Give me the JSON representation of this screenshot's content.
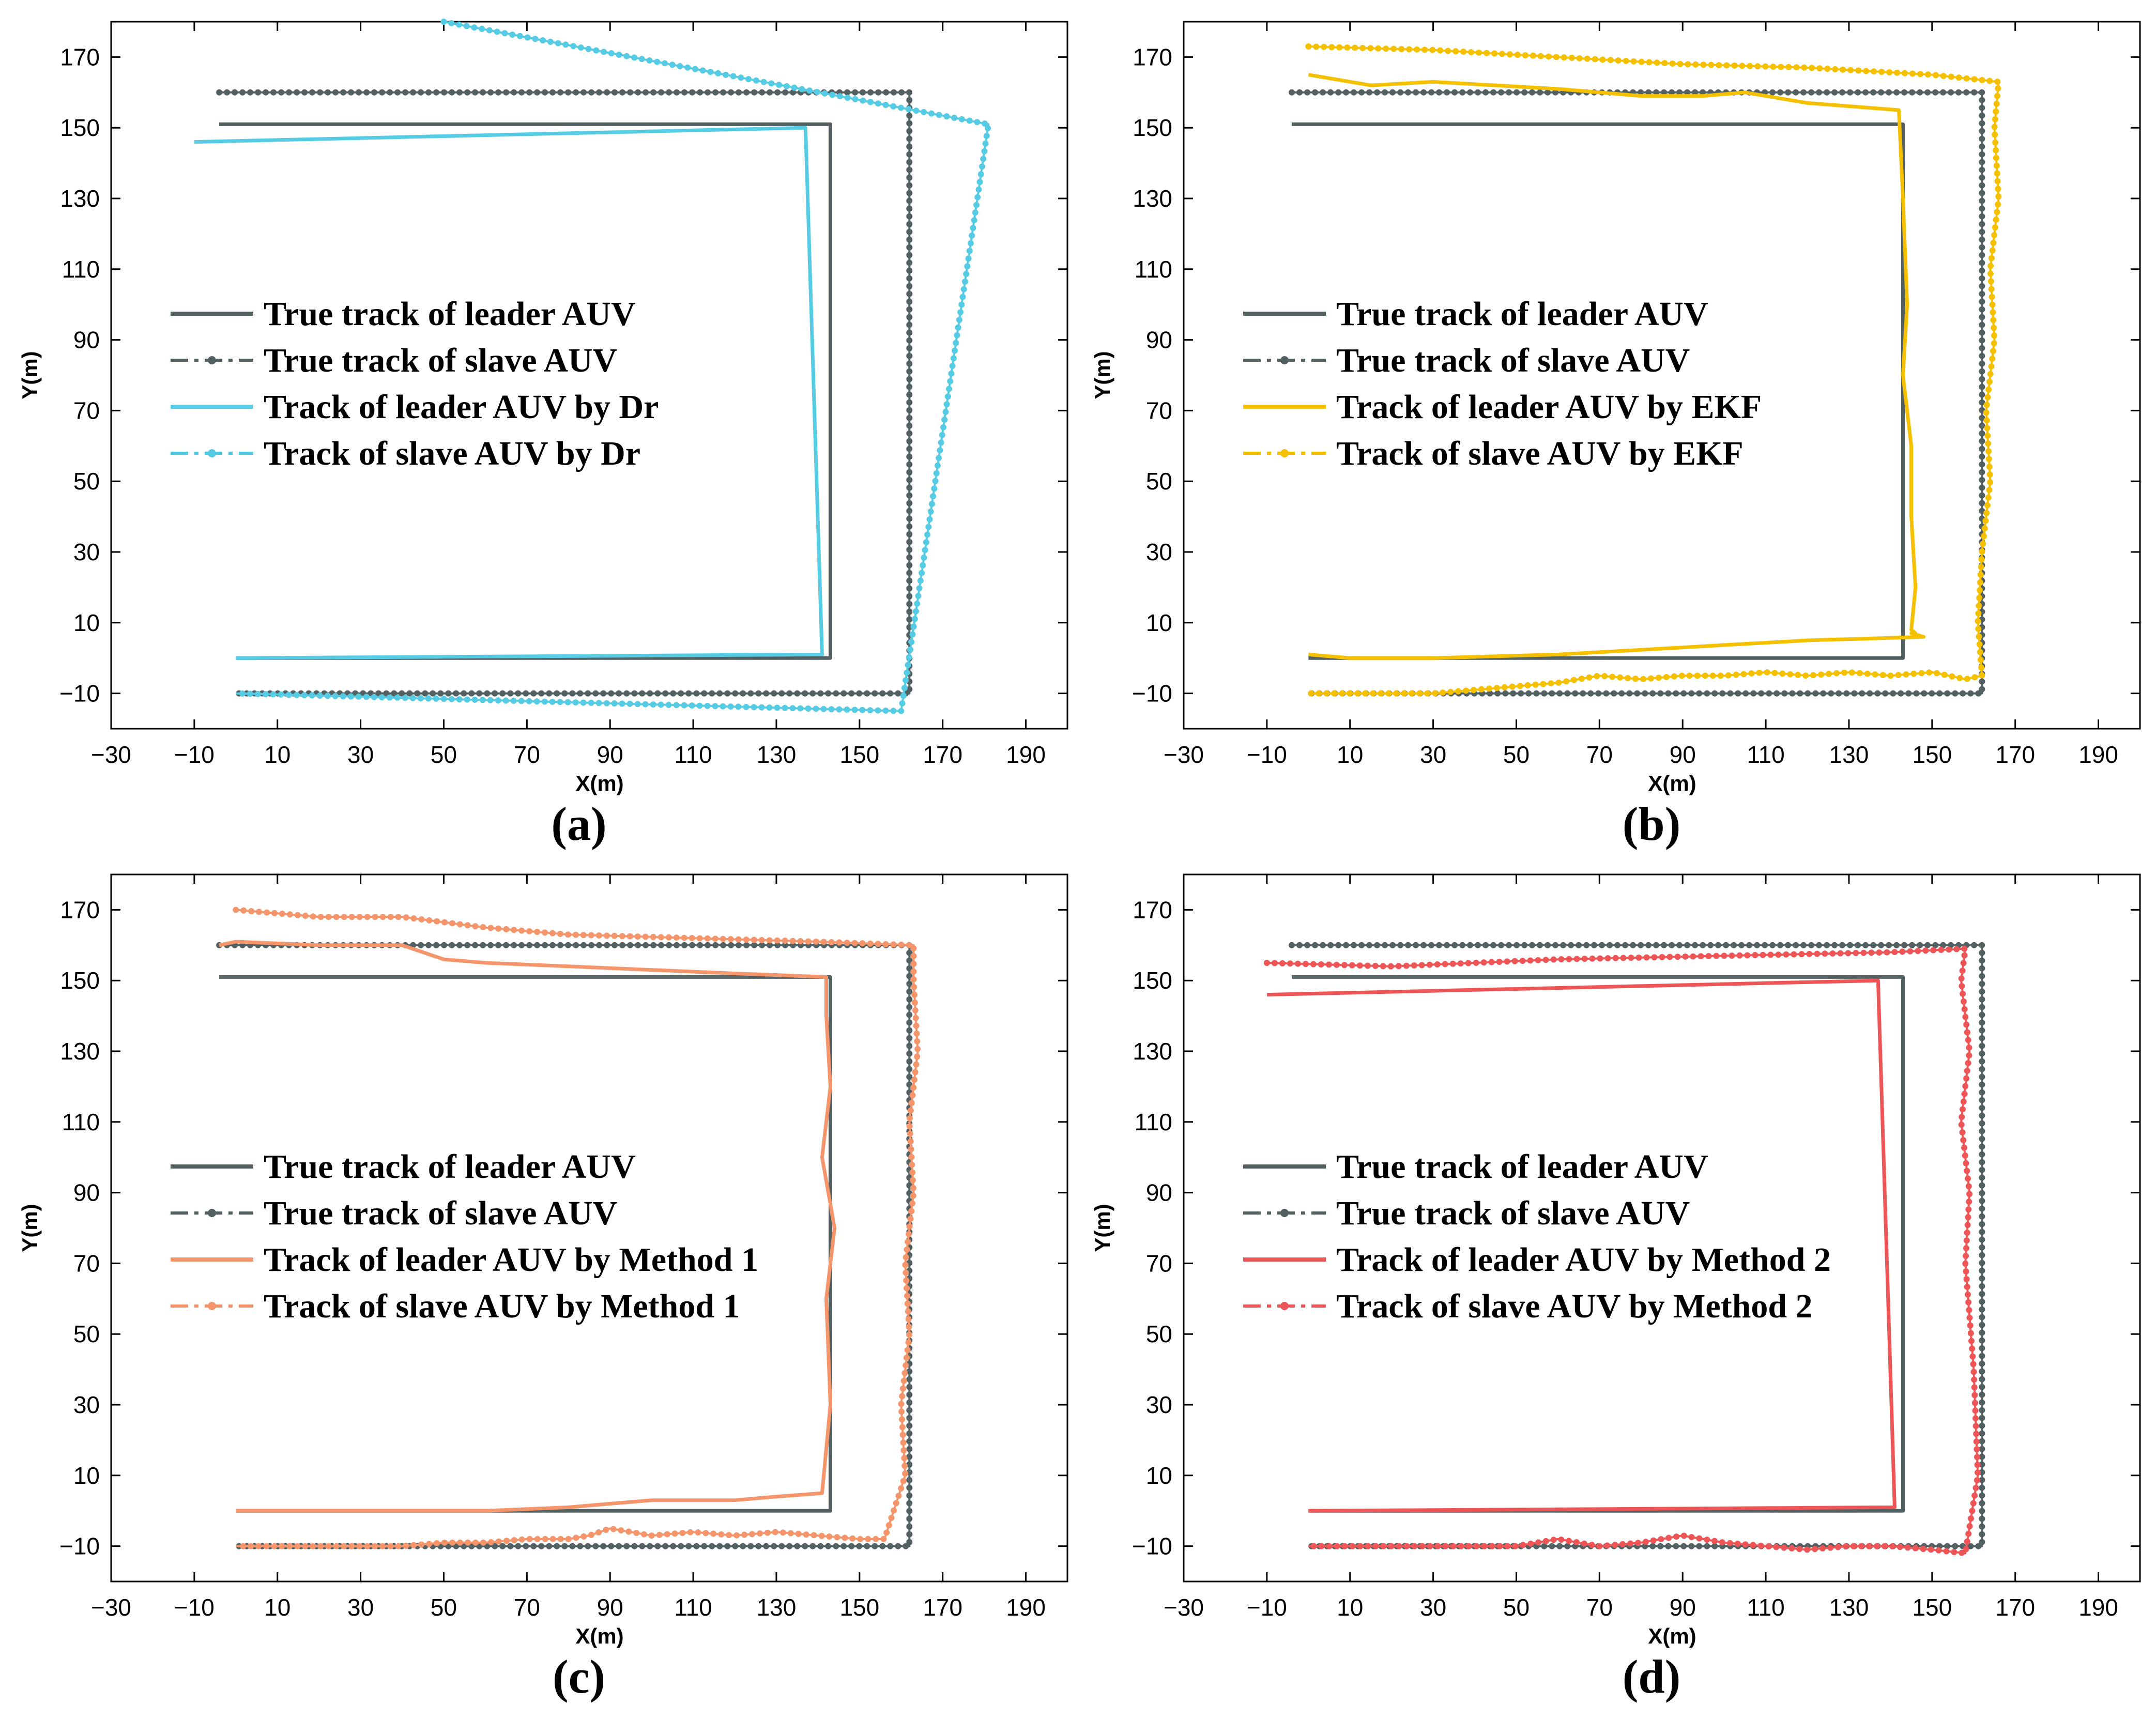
{
  "figure": {
    "title": ""
  },
  "colors": {
    "true_track": "#526062",
    "dr": "#55CBE4",
    "ekf": "#F4C000",
    "method1": "#F5956B",
    "method2": "#EE5557"
  },
  "chart_data": [
    {
      "type": "line",
      "panel_label": "(a)",
      "title": "",
      "xlabel": "X(m)",
      "ylabel": "Y(m)",
      "xlim": [
        -30,
        200
      ],
      "ylim": [
        -20,
        180
      ],
      "xticks": [
        "−30",
        "−10",
        "10",
        "30",
        "50",
        "70",
        "90",
        "110",
        "130",
        "150",
        "170",
        "190"
      ],
      "yticks": [
        "−10",
        "10",
        "30",
        "50",
        "70",
        "90",
        "110",
        "130",
        "150",
        "170"
      ],
      "legend": [
        "True track of leader AUV",
        "True track of slave AUV",
        "Track of leader AUV by Dr",
        "Track of slave AUV by Dr"
      ],
      "legend_loc": "center-left",
      "series": [
        {
          "name": "True track of leader AUV",
          "style": "solid",
          "color": "true_track",
          "x": [
            -4,
            143,
            143,
            0
          ],
          "y": [
            151,
            151,
            0,
            0
          ]
        },
        {
          "name": "True track of slave AUV",
          "style": "dashdot-marker",
          "color": "true_track",
          "x": [
            -4,
            162,
            162,
            0
          ],
          "y": [
            160,
            160,
            -10,
            -10
          ]
        },
        {
          "name": "Track of leader AUV by Dr",
          "style": "solid",
          "color": "dr",
          "x": [
            -10,
            137,
            141,
            0
          ],
          "y": [
            146,
            150,
            1,
            0
          ]
        },
        {
          "name": "Track of slave AUV by Dr",
          "style": "dashdot-marker",
          "color": "dr",
          "x": [
            50,
            181,
            160,
            0
          ],
          "y": [
            180,
            151,
            -15,
            -10
          ]
        }
      ]
    },
    {
      "type": "line",
      "panel_label": "(b)",
      "title": "",
      "xlabel": "X(m)",
      "ylabel": "Y(m)",
      "xlim": [
        -30,
        200
      ],
      "ylim": [
        -20,
        180
      ],
      "xticks": [
        "−30",
        "−10",
        "10",
        "30",
        "50",
        "70",
        "90",
        "110",
        "130",
        "150",
        "170",
        "190"
      ],
      "yticks": [
        "−10",
        "10",
        "30",
        "50",
        "70",
        "90",
        "110",
        "130",
        "150",
        "170"
      ],
      "legend": [
        "True track of leader AUV",
        "True track of slave AUV",
        "Track of leader AUV by EKF",
        "Track of slave AUV by EKF"
      ],
      "legend_loc": "center-left",
      "series": [
        {
          "name": "True track of leader AUV",
          "style": "solid",
          "color": "true_track",
          "x": [
            -4,
            143,
            143,
            0
          ],
          "y": [
            151,
            151,
            0,
            0
          ]
        },
        {
          "name": "True track of slave AUV",
          "style": "dashdot-marker",
          "color": "true_track",
          "x": [
            -4,
            162,
            162,
            0
          ],
          "y": [
            160,
            160,
            -10,
            -10
          ]
        },
        {
          "name": "Track of leader AUV by EKF",
          "style": "solid",
          "color": "ekf",
          "x": [
            0,
            15,
            30,
            60,
            80,
            95,
            105,
            120,
            142,
            143,
            144,
            143,
            145,
            145,
            146,
            145,
            146,
            145,
            148,
            120,
            90,
            60,
            30,
            10,
            0
          ],
          "y": [
            165,
            162,
            163,
            161,
            159,
            159,
            160,
            157,
            155,
            130,
            100,
            80,
            60,
            40,
            20,
            8,
            7,
            7,
            6,
            5,
            3,
            1,
            0,
            0,
            1
          ]
        },
        {
          "name": "Track of slave AUV by EKF",
          "style": "dashdot-marker",
          "color": "ekf",
          "x": [
            0,
            30,
            60,
            90,
            120,
            150,
            166,
            165,
            166,
            164,
            165,
            163,
            164,
            162,
            161,
            162,
            158,
            150,
            140,
            130,
            120,
            110,
            100,
            90,
            80,
            70,
            60,
            50,
            40,
            30,
            20,
            10,
            0
          ],
          "y": [
            173,
            172,
            170,
            168,
            167,
            165,
            163,
            150,
            130,
            110,
            90,
            70,
            50,
            30,
            10,
            -5,
            -6,
            -4,
            -5,
            -4,
            -5,
            -4,
            -5,
            -5,
            -6,
            -5,
            -7,
            -8,
            -9,
            -10,
            -10,
            -10,
            -10
          ]
        }
      ]
    },
    {
      "type": "line",
      "panel_label": "(c)",
      "title": "",
      "xlabel": "X(m)",
      "ylabel": "Y(m)",
      "xlim": [
        -30,
        200
      ],
      "ylim": [
        -20,
        180
      ],
      "xticks": [
        "−30",
        "−10",
        "10",
        "30",
        "50",
        "70",
        "90",
        "110",
        "130",
        "150",
        "170",
        "190"
      ],
      "yticks": [
        "−10",
        "10",
        "30",
        "50",
        "70",
        "90",
        "110",
        "130",
        "150",
        "170"
      ],
      "legend": [
        "True track of leader AUV",
        "True track of slave AUV",
        "Track of leader AUV by Method 1",
        "Track of slave AUV by Method 1"
      ],
      "legend_loc": "center-left",
      "series": [
        {
          "name": "True track of leader AUV",
          "style": "solid",
          "color": "true_track",
          "x": [
            -4,
            143,
            143,
            0
          ],
          "y": [
            151,
            151,
            0,
            0
          ]
        },
        {
          "name": "True track of slave AUV",
          "style": "dashdot-marker",
          "color": "true_track",
          "x": [
            -4,
            162,
            162,
            0
          ],
          "y": [
            160,
            160,
            -10,
            -10
          ]
        },
        {
          "name": "Track of leader AUV by Method 1",
          "style": "solid",
          "color": "method1",
          "x": [
            -4,
            0,
            20,
            40,
            45,
            50,
            60,
            80,
            120,
            142,
            142,
            143,
            141,
            144,
            142,
            143,
            141,
            130,
            120,
            100,
            90,
            80,
            60,
            40,
            20,
            0
          ],
          "y": [
            160,
            161,
            160,
            160,
            158,
            156,
            155,
            154,
            152,
            151,
            140,
            120,
            100,
            80,
            60,
            30,
            5,
            4,
            3,
            3,
            2,
            1,
            0,
            0,
            0,
            0
          ]
        },
        {
          "name": "Track of slave AUV by Method 1",
          "style": "dashdot-marker",
          "color": "method1",
          "x": [
            0,
            20,
            40,
            60,
            80,
            110,
            140,
            163,
            163,
            164,
            162,
            163,
            161,
            162,
            160,
            161,
            156,
            150,
            140,
            130,
            120,
            110,
            100,
            95,
            90,
            85,
            80,
            70,
            60,
            50,
            40,
            30,
            20,
            10,
            0
          ],
          "y": [
            170,
            168,
            168,
            165,
            163,
            162,
            161,
            160,
            150,
            130,
            110,
            90,
            70,
            50,
            30,
            10,
            -8,
            -8,
            -7,
            -6,
            -7,
            -6,
            -7,
            -6,
            -5,
            -7,
            -8,
            -8,
            -9,
            -9,
            -10,
            -10,
            -10,
            -10,
            -10
          ]
        }
      ]
    },
    {
      "type": "line",
      "panel_label": "(d)",
      "title": "",
      "xlabel": "X(m)",
      "ylabel": "Y(m)",
      "xlim": [
        -30,
        200
      ],
      "ylim": [
        -20,
        180
      ],
      "xticks": [
        "−30",
        "−10",
        "10",
        "30",
        "50",
        "70",
        "90",
        "110",
        "130",
        "150",
        "170",
        "190"
      ],
      "yticks": [
        "−10",
        "10",
        "30",
        "50",
        "70",
        "90",
        "110",
        "130",
        "150",
        "170"
      ],
      "legend": [
        "True track of leader AUV",
        "True track of slave AUV",
        "Track of leader AUV by Method 2",
        "Track of slave AUV by Method 2"
      ],
      "legend_loc": "center-left",
      "series": [
        {
          "name": "True track of leader AUV",
          "style": "solid",
          "color": "true_track",
          "x": [
            -4,
            143,
            143,
            0
          ],
          "y": [
            151,
            151,
            0,
            0
          ]
        },
        {
          "name": "True track of slave AUV",
          "style": "dashdot-marker",
          "color": "true_track",
          "x": [
            -4,
            162,
            162,
            0
          ],
          "y": [
            160,
            160,
            -10,
            -10
          ]
        },
        {
          "name": "Track of leader AUV by Method 2",
          "style": "solid",
          "color": "method2",
          "x": [
            -10,
            137,
            141,
            0
          ],
          "y": [
            146,
            150,
            1,
            0
          ]
        },
        {
          "name": "Track of slave AUV by Method 2",
          "style": "dashdot-marker",
          "color": "method2",
          "x": [
            -10,
            20,
            60,
            100,
            140,
            158,
            157,
            159,
            157,
            159,
            158,
            160,
            161,
            158,
            150,
            140,
            130,
            120,
            110,
            100,
            90,
            85,
            80,
            70,
            60,
            50,
            40,
            30,
            20,
            10,
            0
          ],
          "y": [
            155,
            154,
            156,
            157,
            158,
            159,
            150,
            130,
            110,
            90,
            70,
            40,
            10,
            -12,
            -11,
            -10,
            -10,
            -11,
            -10,
            -9,
            -7,
            -8,
            -9,
            -10,
            -8,
            -10,
            -10,
            -10,
            -10,
            -10,
            -10
          ]
        }
      ]
    }
  ]
}
